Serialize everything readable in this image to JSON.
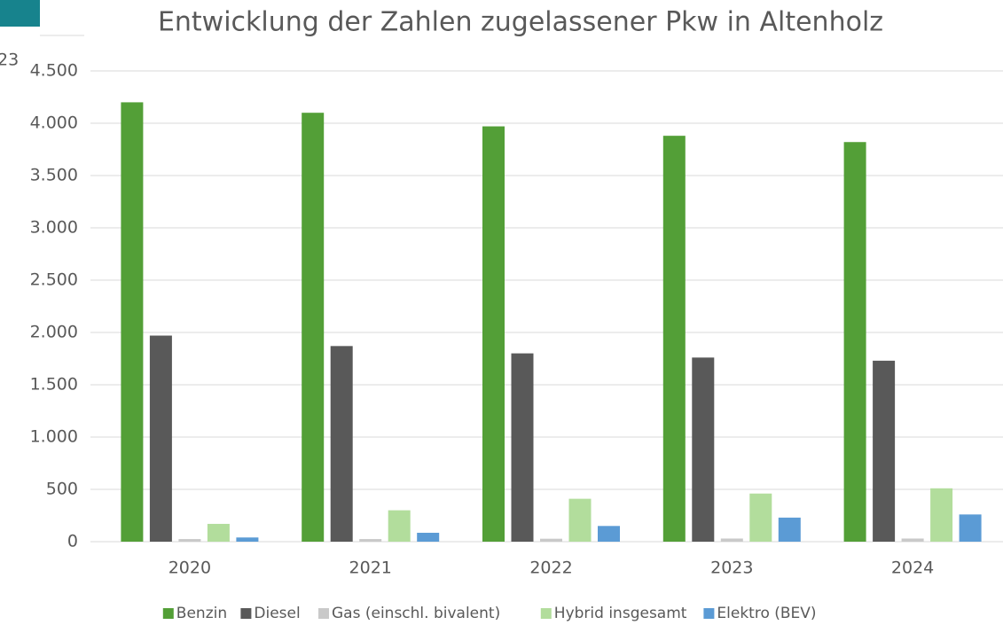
{
  "side_label": "23",
  "chart_data": {
    "type": "bar",
    "title": "Entwicklung der Zahlen zugelassener Pkw in Altenholz",
    "categories": [
      "2020",
      "2021",
      "2022",
      "2023",
      "2024"
    ],
    "series": [
      {
        "name": "Benzin",
        "color": "#539f37",
        "values": [
          4200,
          4100,
          3970,
          3880,
          3820
        ]
      },
      {
        "name": "Diesel",
        "color": "#595959",
        "values": [
          1970,
          1870,
          1800,
          1760,
          1730
        ]
      },
      {
        "name": "Gas (einschl. bivalent)",
        "color": "#c9c9c9",
        "values": [
          25,
          25,
          28,
          30,
          30
        ]
      },
      {
        "name": "Hybrid insgesamt",
        "color": "#b2dd9c",
        "values": [
          170,
          300,
          410,
          460,
          510
        ]
      },
      {
        "name": "Elektro (BEV)",
        "color": "#5b9bd5",
        "values": [
          40,
          85,
          150,
          230,
          260
        ]
      }
    ],
    "ylim": [
      0,
      4500
    ],
    "yticks": [
      0,
      500,
      {
        "value": 1000,
        "label": "1.000"
      },
      {
        "value": 1500,
        "label": "1.500"
      },
      {
        "value": 2000,
        "label": "2.000"
      },
      {
        "value": 2500,
        "label": "2.500"
      },
      {
        "value": 3000,
        "label": "3.000"
      },
      {
        "value": 3500,
        "label": "3.500"
      },
      {
        "value": 4000,
        "label": "4.000"
      },
      {
        "value": 4500,
        "label": "4.500"
      }
    ],
    "grid": true,
    "legend": "bottom"
  }
}
